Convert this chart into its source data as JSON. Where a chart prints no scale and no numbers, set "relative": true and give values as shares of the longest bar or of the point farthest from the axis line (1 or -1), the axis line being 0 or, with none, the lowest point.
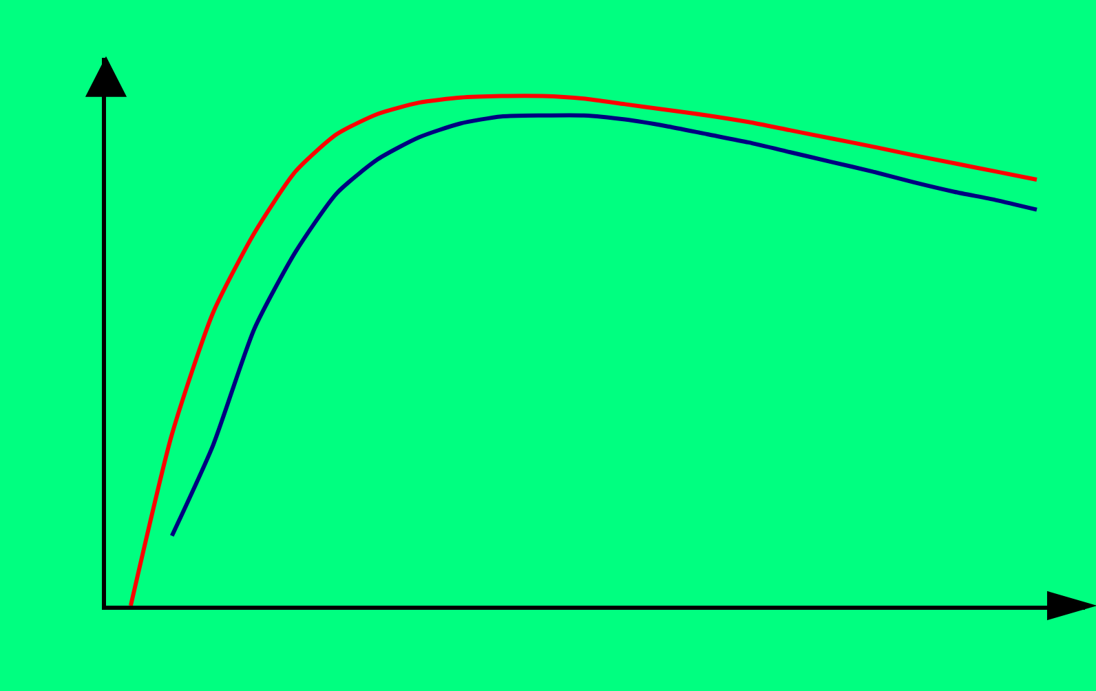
{
  "chart_data": {
    "type": "line",
    "relative": true,
    "tick_labels": false,
    "grid": false,
    "marker": "none",
    "categories": [
      null,
      null,
      null,
      null,
      null,
      null,
      null,
      null,
      null,
      null,
      null,
      null,
      null,
      null,
      null,
      null,
      null,
      null,
      null,
      null,
      null,
      null,
      null
    ],
    "series": [
      {
        "color": "#ff0000",
        "values": [
          0,
          0.336,
          0.575,
          0.731,
          0.852,
          0.925,
          0.965,
          0.987,
          0.997,
          1,
          1,
          0.995,
          0.984,
          0.973,
          0.962,
          0.949,
          0.933,
          0.917,
          0.901,
          0.884,
          0.868,
          0.852,
          0.836
        ]
      },
      {
        "color": "#000080",
        "values": [
          null,
          0.137,
          0.315,
          0.543,
          0.694,
          0.809,
          0.876,
          0.919,
          0.946,
          0.96,
          0.962,
          0.962,
          0.954,
          0.941,
          0.925,
          0.909,
          0.89,
          0.871,
          0.852,
          0.831,
          0.812,
          0.796,
          0.777
        ]
      }
    ]
  }
}
